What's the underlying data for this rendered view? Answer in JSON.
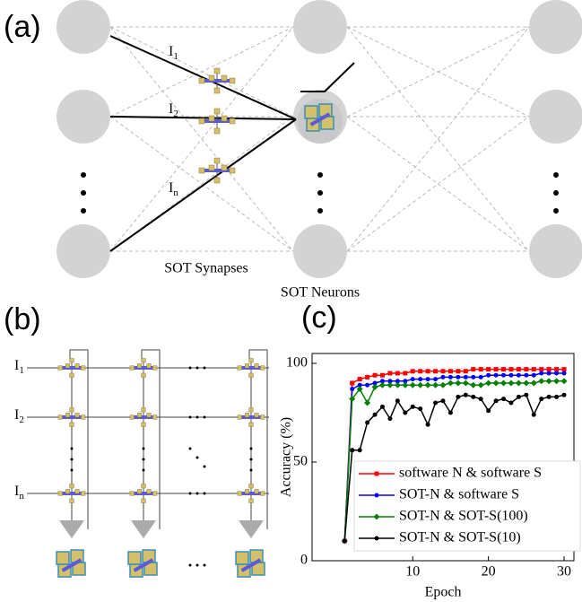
{
  "panel_a": {
    "label": "(a)",
    "currents": [
      {
        "text": "I",
        "sub": "1"
      },
      {
        "text": "I",
        "sub": "2"
      },
      {
        "text": "I",
        "sub": "n"
      }
    ],
    "synapses_label": "SOT Synapses",
    "neurons_label": "SOT Neurons"
  },
  "panel_b": {
    "label": "(b)",
    "rows": [
      {
        "text": "I",
        "sub": "1"
      },
      {
        "text": "I",
        "sub": "2"
      },
      {
        "text": "I",
        "sub": "n"
      }
    ]
  },
  "panel_c": {
    "label": "(c)"
  },
  "chart_data": {
    "type": "line",
    "xlabel": "Epoch",
    "ylabel": "Accuracy (%)",
    "x": [
      1,
      2,
      3,
      4,
      5,
      6,
      7,
      8,
      9,
      10,
      11,
      12,
      13,
      14,
      15,
      16,
      17,
      18,
      19,
      20,
      21,
      22,
      23,
      24,
      25,
      26,
      27,
      28,
      29,
      30
    ],
    "xlim": [
      -3.3,
      31.3
    ],
    "xticks": [
      10,
      20,
      30
    ],
    "ylim": [
      0,
      105
    ],
    "yticks": [
      0,
      50,
      100
    ],
    "series": [
      {
        "name": "software N & software S",
        "color": "#ff0000",
        "marker": "square",
        "values": [
          10,
          90,
          92,
          93,
          94,
          94,
          95,
          95,
          95,
          96,
          96,
          96,
          96,
          96,
          96,
          96,
          96,
          97,
          97,
          97,
          97,
          97,
          97,
          97,
          97,
          97,
          97,
          97,
          97,
          97
        ]
      },
      {
        "name": "SOT-N & software S",
        "color": "#0000ff",
        "marker": "circle",
        "values": [
          10,
          87,
          89,
          89,
          90,
          91,
          91,
          91,
          91,
          92,
          92,
          92,
          92,
          93,
          93,
          93,
          93,
          93,
          93,
          94,
          94,
          94,
          94,
          94,
          94,
          94,
          95,
          95,
          95,
          95
        ]
      },
      {
        "name": "SOT-N & SOT-S(100)",
        "color": "#008000",
        "marker": "diamond",
        "values": [
          10,
          82,
          87,
          80,
          88,
          89,
          89,
          89,
          89,
          89,
          89,
          89,
          89,
          89,
          90,
          90,
          90,
          89,
          89,
          90,
          90,
          90,
          90,
          90,
          90,
          90,
          91,
          91,
          91,
          91
        ]
      },
      {
        "name": "SOT-N & SOT-S(10)",
        "color": "#000000",
        "marker": "circle",
        "values": [
          10,
          56,
          56,
          70,
          74,
          78,
          72,
          81,
          75,
          78,
          77,
          69,
          80,
          81,
          75,
          83,
          84,
          83,
          82,
          76,
          81,
          82,
          80,
          83,
          84,
          74,
          82,
          83,
          83,
          84
        ]
      }
    ]
  }
}
